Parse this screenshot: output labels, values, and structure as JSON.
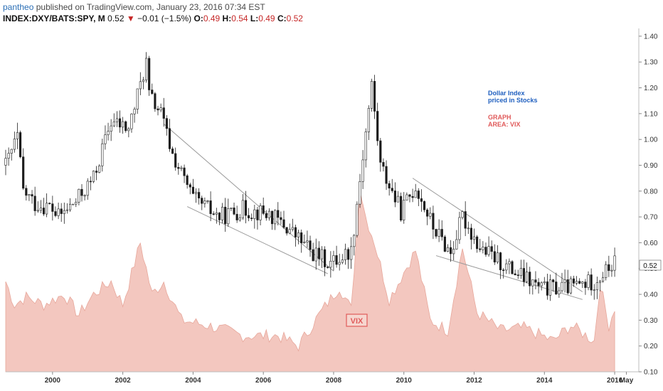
{
  "header": {
    "author": "pantheo",
    "published": "published on TradingView.com, January 23, 2016 07:34 EST",
    "symbol": "INDEX:DXY/BATS:SPY, M",
    "last": "0.52",
    "arrow": "▼",
    "change": "−0.01 (−1.5%)",
    "o_label": "O:",
    "o_value": "0.49",
    "h_label": "H:",
    "h_value": "0.54",
    "l_label": "L:",
    "l_value": "0.49",
    "c_label": "C:",
    "c_value": "0.52"
  },
  "annotations": {
    "dollar_index_line1": "Dollar Index",
    "dollar_index_line2": "priced in Stocks",
    "graph_line1": "GRAPH",
    "graph_line2": "AREA: VIX",
    "vix_label": "VIX"
  },
  "colors": {
    "candle_up": "#ffffff",
    "candle_down": "#1a1a1a",
    "vix_fill": "#f2c1b8",
    "vix_stroke": "#e7a79b",
    "trendline": "#9a9a9a",
    "blue_text": "#1f5fbf",
    "red_text": "#e05a5a"
  },
  "chart_data": {
    "type": "candlestick",
    "title": "",
    "y_axis": {
      "ticks": [
        "1.40",
        "1.30",
        "1.20",
        "1.10",
        "1.00",
        "0.90",
        "0.80",
        "0.70",
        "0.60",
        "0.50",
        "0.40",
        "0.30",
        "0.20",
        "0.10"
      ],
      "ylim": [
        0.1,
        1.43
      ],
      "last_price_label": "0.52"
    },
    "x_axis": {
      "ticks": [
        "2000",
        "2002",
        "2004",
        "2006",
        "2008",
        "2010",
        "2012",
        "2014",
        "2016",
        "May"
      ],
      "xlim": [
        "1998-09",
        "2016-09"
      ]
    },
    "candles_anchor_path": [
      {
        "date": "1998-09",
        "close": 0.9
      },
      {
        "date": "1999-01",
        "close": 1.01
      },
      {
        "date": "1999-03",
        "close": 0.8
      },
      {
        "date": "1999-07",
        "close": 0.75
      },
      {
        "date": "1999-12",
        "close": 0.74
      },
      {
        "date": "2000-03",
        "close": 0.7
      },
      {
        "date": "2000-09",
        "close": 0.76
      },
      {
        "date": "2001-03",
        "close": 0.85
      },
      {
        "date": "2001-09",
        "close": 1.07
      },
      {
        "date": "2002-03",
        "close": 1.04
      },
      {
        "date": "2002-09",
        "close": 1.3
      },
      {
        "date": "2002-10",
        "close": 1.17
      },
      {
        "date": "2003-02",
        "close": 1.1
      },
      {
        "date": "2003-06",
        "close": 0.94
      },
      {
        "date": "2004-01",
        "close": 0.77
      },
      {
        "date": "2004-10",
        "close": 0.7
      },
      {
        "date": "2005-06",
        "close": 0.73
      },
      {
        "date": "2006-03",
        "close": 0.71
      },
      {
        "date": "2006-10",
        "close": 0.65
      },
      {
        "date": "2007-06",
        "close": 0.56
      },
      {
        "date": "2007-12",
        "close": 0.52
      },
      {
        "date": "2008-07",
        "close": 0.57
      },
      {
        "date": "2008-12",
        "close": 1.03
      },
      {
        "date": "2009-02",
        "close": 1.21
      },
      {
        "date": "2009-05",
        "close": 0.9
      },
      {
        "date": "2009-12",
        "close": 0.72
      },
      {
        "date": "2010-05",
        "close": 0.82
      },
      {
        "date": "2010-11",
        "close": 0.66
      },
      {
        "date": "2011-05",
        "close": 0.56
      },
      {
        "date": "2011-09",
        "close": 0.7
      },
      {
        "date": "2012-03",
        "close": 0.58
      },
      {
        "date": "2013-01",
        "close": 0.5
      },
      {
        "date": "2013-12",
        "close": 0.42
      },
      {
        "date": "2014-10",
        "close": 0.43
      },
      {
        "date": "2015-06",
        "close": 0.45
      },
      {
        "date": "2016-01",
        "close": 0.52
      }
    ],
    "vix_area_path": [
      {
        "date": "1998-09",
        "value": 0.45
      },
      {
        "date": "1998-12",
        "value": 0.36
      },
      {
        "date": "1999-04",
        "value": 0.39
      },
      {
        "date": "1999-10",
        "value": 0.36
      },
      {
        "date": "2000-05",
        "value": 0.4
      },
      {
        "date": "2000-10",
        "value": 0.32
      },
      {
        "date": "2001-03",
        "value": 0.4
      },
      {
        "date": "2001-09",
        "value": 0.45
      },
      {
        "date": "2002-01",
        "value": 0.36
      },
      {
        "date": "2002-07",
        "value": 0.6
      },
      {
        "date": "2002-11",
        "value": 0.4
      },
      {
        "date": "2003-03",
        "value": 0.45
      },
      {
        "date": "2003-09",
        "value": 0.3
      },
      {
        "date": "2004-06",
        "value": 0.28
      },
      {
        "date": "2005-06",
        "value": 0.24
      },
      {
        "date": "2006-06",
        "value": 0.24
      },
      {
        "date": "2007-01",
        "value": 0.2
      },
      {
        "date": "2007-08",
        "value": 0.32
      },
      {
        "date": "2008-03",
        "value": 0.43
      },
      {
        "date": "2008-07",
        "value": 0.34
      },
      {
        "date": "2008-10",
        "value": 0.82
      },
      {
        "date": "2008-12",
        "value": 0.7
      },
      {
        "date": "2009-03",
        "value": 0.6
      },
      {
        "date": "2009-08",
        "value": 0.38
      },
      {
        "date": "2010-05",
        "value": 0.57
      },
      {
        "date": "2010-10",
        "value": 0.3
      },
      {
        "date": "2011-04",
        "value": 0.26
      },
      {
        "date": "2011-09",
        "value": 0.58
      },
      {
        "date": "2012-02",
        "value": 0.33
      },
      {
        "date": "2012-10",
        "value": 0.26
      },
      {
        "date": "2013-06",
        "value": 0.27
      },
      {
        "date": "2014-04",
        "value": 0.22
      },
      {
        "date": "2014-10",
        "value": 0.28
      },
      {
        "date": "2015-06",
        "value": 0.22
      },
      {
        "date": "2015-08",
        "value": 0.44
      },
      {
        "date": "2015-11",
        "value": 0.28
      },
      {
        "date": "2016-01",
        "value": 0.35
      }
    ],
    "trendlines": [
      {
        "from": {
          "date": "2003-03",
          "value": 1.06
        },
        "to": {
          "date": "2008-01",
          "value": 0.49
        }
      },
      {
        "from": {
          "date": "2003-11",
          "value": 0.74
        },
        "to": {
          "date": "2007-11",
          "value": 0.48
        }
      },
      {
        "from": {
          "date": "2010-04",
          "value": 0.85
        },
        "to": {
          "date": "2015-02",
          "value": 0.41
        }
      },
      {
        "from": {
          "date": "2010-12",
          "value": 0.55
        },
        "to": {
          "date": "2015-02",
          "value": 0.38
        }
      }
    ]
  }
}
